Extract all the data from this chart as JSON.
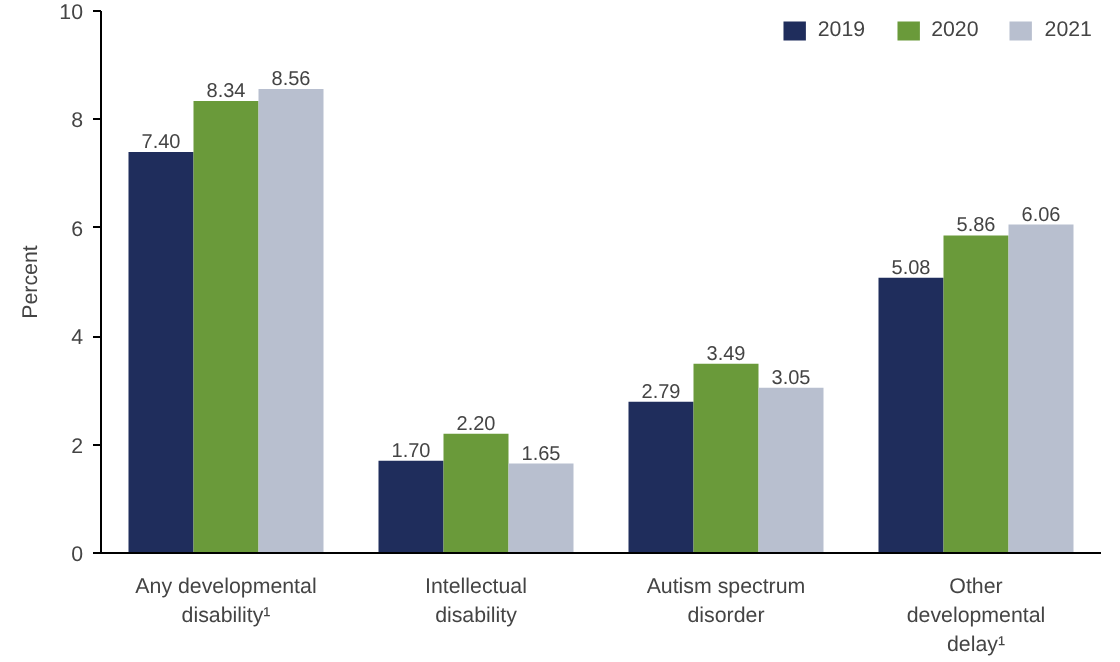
{
  "chart_data": {
    "type": "bar",
    "ylabel": "Percent",
    "categories": [
      "Any developmental\ndisability¹",
      "Intellectual\ndisability",
      "Autism spectrum\ndisorder",
      "Other\ndevelopmental\ndelay¹"
    ],
    "series": [
      {
        "name": "2019",
        "color": "#1f2d5c",
        "values": [
          7.4,
          1.7,
          2.79,
          5.08
        ],
        "value_labels": [
          "7.40",
          "1.70",
          "2.79",
          "5.08"
        ]
      },
      {
        "name": "2020",
        "color": "#6a9a3a",
        "values": [
          8.34,
          2.2,
          3.49,
          5.86
        ],
        "value_labels": [
          "8.34",
          "2.20",
          "3.49",
          "5.86"
        ]
      },
      {
        "name": "2021",
        "color": "#b8bfcf",
        "values": [
          8.56,
          1.65,
          3.05,
          6.06
        ],
        "value_labels": [
          "8.56",
          "1.65",
          "3.05",
          "6.06"
        ]
      }
    ],
    "ylim": [
      0,
      10
    ],
    "yticks": [
      0,
      2,
      4,
      6,
      8,
      10
    ],
    "grid": false,
    "legend": "top right"
  }
}
